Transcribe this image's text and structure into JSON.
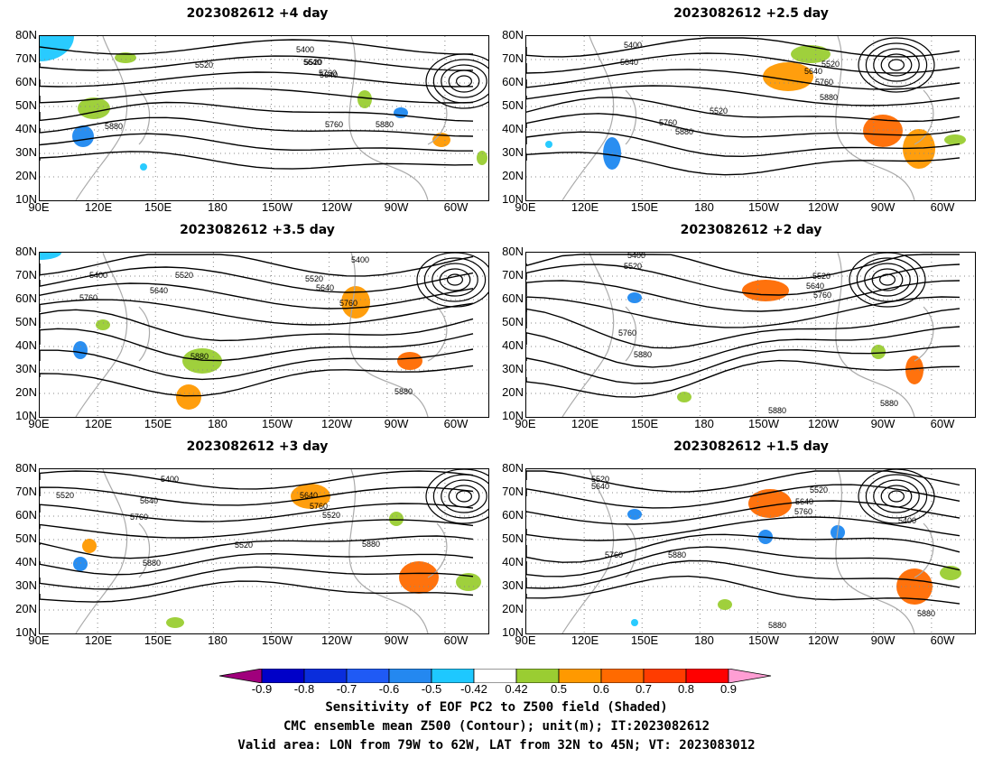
{
  "panels": [
    {
      "title": "2023082612 +4 day",
      "contour_labels": [
        "5400",
        "5520",
        "5640",
        "5760",
        "5880",
        "5520",
        "5640",
        "5760",
        "5880"
      ]
    },
    {
      "title": "2023082612 +2.5 day",
      "contour_labels": [
        "5400",
        "5640",
        "5520",
        "5640",
        "5760",
        "5880",
        "5520",
        "5760",
        "5880"
      ]
    },
    {
      "title": "2023082612 +3.5 day",
      "contour_labels": [
        "5400",
        "5520",
        "5640",
        "5760",
        "5520",
        "5640",
        "5760",
        "5400",
        "5880",
        "5880"
      ]
    },
    {
      "title": "2023082612 +2 day",
      "contour_labels": [
        "5520",
        "5400",
        "5520",
        "5640",
        "5760",
        "5760",
        "5880",
        "5880",
        "5880"
      ]
    },
    {
      "title": "2023082612 +3 day",
      "contour_labels": [
        "5400",
        "5520",
        "5640",
        "5760",
        "5520",
        "5640",
        "5760",
        "5520",
        "5880",
        "5880"
      ]
    },
    {
      "title": "2023082612 +1.5 day",
      "contour_labels": [
        "5520",
        "5640",
        "5520",
        "5640",
        "5760",
        "5400",
        "5760",
        "5880",
        "5880",
        "5880"
      ]
    }
  ],
  "lat_ticks": [
    "80N",
    "70N",
    "60N",
    "50N",
    "40N",
    "30N",
    "20N",
    "10N"
  ],
  "lon_ticks": [
    "90E",
    "120E",
    "150E",
    "180",
    "150W",
    "120W",
    "90W",
    "60W"
  ],
  "colorbar": {
    "colors": [
      "#a0007c",
      "#0000c8",
      "#0a2ddc",
      "#1f5af5",
      "#2488f0",
      "#1ec8ff",
      "#ffffff",
      "#9acd32",
      "#ff9900",
      "#ff6a00",
      "#ff3c00",
      "#ff0000",
      "#ff9ed4"
    ],
    "labels": [
      "-0.9",
      "-0.8",
      "-0.7",
      "-0.6",
      "-0.5",
      "-0.42",
      "0.42",
      "0.5",
      "0.6",
      "0.7",
      "0.8",
      "0.9"
    ]
  },
  "caption": {
    "line1": "Sensitivity of EOF PC2 to Z500 field (Shaded)",
    "line2": "CMC ensemble mean Z500 (Contour); unit(m); IT:2023082612",
    "line3": "Valid area: LON from 79W to 62W, LAT from 32N to 45N; VT: 2023083012"
  }
}
